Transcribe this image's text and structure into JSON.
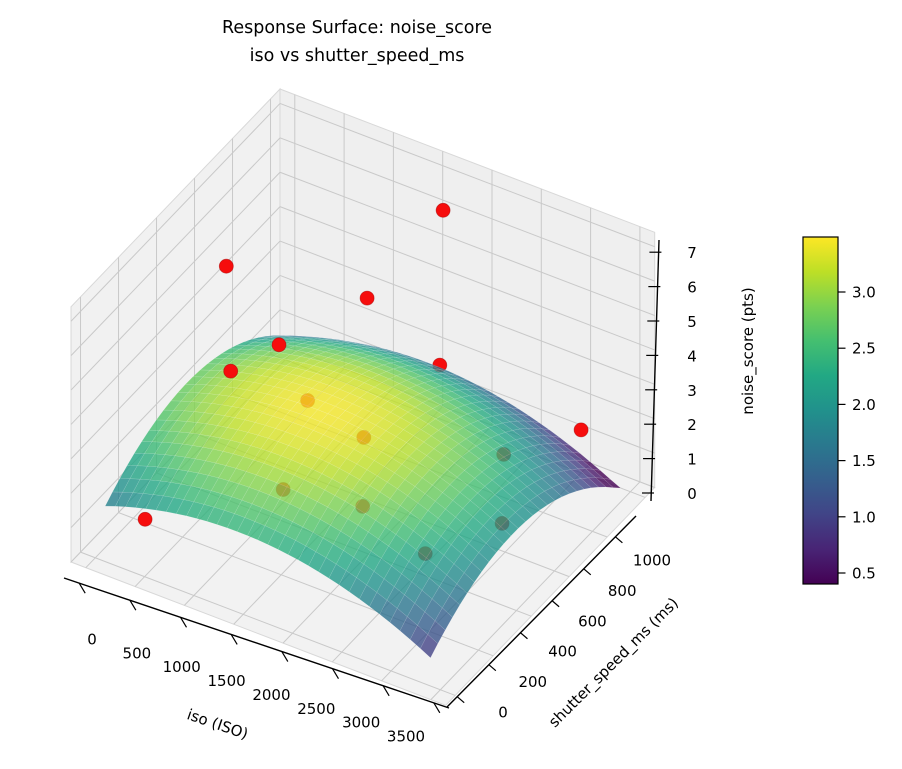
{
  "chart_data": {
    "type": "3d-surface-with-scatter",
    "title": "Response Surface: noise_score",
    "subtitle": "iso vs shutter_speed_ms",
    "colormap": "viridis",
    "background_color": "#ffffff",
    "pane_color": "#f2f2f2",
    "grid_color": "#c9c9c9",
    "x_axis": {
      "label": "iso (ISO)",
      "ticks": [
        0,
        500,
        1000,
        1500,
        2000,
        2500,
        3000,
        3500
      ],
      "range": [
        -150,
        3650
      ]
    },
    "y_axis": {
      "label": "shutter_speed_ms (ms)",
      "ticks": [
        0,
        200,
        400,
        600,
        800,
        1000
      ],
      "range": [
        -50,
        1050
      ]
    },
    "z_axis": {
      "label": "noise_score (pts)",
      "ticks": [
        0,
        1,
        2,
        3,
        4,
        5,
        6,
        7
      ],
      "range": [
        0,
        7.42
      ]
    },
    "colorbar": {
      "ticks": [
        0.5,
        1.0,
        1.5,
        2.0,
        2.5,
        3.0
      ],
      "vmin": 0.4,
      "vmax": 3.5
    },
    "surface_fit": {
      "model": "quadratic",
      "z_peak": 3.45,
      "iso_peak": 1450,
      "shutter_peak": 430,
      "curvature_iso": 4e-07,
      "curvature_shutter": 6e-06,
      "iso_domain": [
        100,
        3400
      ],
      "shutter_domain": [
        0,
        1000
      ],
      "surface_alpha": 0.8
    },
    "scatter": {
      "color": "#f60d0d",
      "points": [
        {
          "iso": 1600,
          "shutter_speed_ms": 1000,
          "noise_score": 6.1,
          "behind_surface": false
        },
        {
          "iso": 500,
          "shutter_speed_ms": 430,
          "noise_score": 6.55,
          "behind_surface": false
        },
        {
          "iso": 1600,
          "shutter_speed_ms": 600,
          "noise_score": 5.85,
          "behind_surface": false
        },
        {
          "iso": 900,
          "shutter_speed_ms": 500,
          "noise_score": 4.3,
          "behind_surface": false
        },
        {
          "iso": 680,
          "shutter_speed_ms": 360,
          "noise_score": 4.1,
          "behind_surface": false
        },
        {
          "iso": 3000,
          "shutter_speed_ms": 1000,
          "noise_score": 1.25,
          "behind_surface": false
        },
        {
          "iso": 120,
          "shutter_speed_ms": 200,
          "noise_score": 0.1,
          "behind_surface": false
        },
        {
          "iso": 1760,
          "shutter_speed_ms": 900,
          "noise_score": 2.35,
          "behind_surface": true
        },
        {
          "iso": 1190,
          "shutter_speed_ms": 500,
          "noise_score": 3.0,
          "behind_surface": true
        },
        {
          "iso": 1760,
          "shutter_speed_ms": 500,
          "noise_score": 2.55,
          "behind_surface": true
        },
        {
          "iso": 1520,
          "shutter_speed_ms": 200,
          "noise_score": 2.5,
          "behind_surface": true
        },
        {
          "iso": 2230,
          "shutter_speed_ms": 250,
          "noise_score": 2.5,
          "behind_surface": true
        },
        {
          "iso": 2600,
          "shutter_speed_ms": 800,
          "noise_score": 1.25,
          "behind_surface": true
        },
        {
          "iso": 2970,
          "shutter_speed_ms": 600,
          "noise_score": 0.8,
          "behind_surface": true
        },
        {
          "iso": 2480,
          "shutter_speed_ms": 450,
          "noise_score": 0.25,
          "behind_surface": true
        }
      ]
    }
  }
}
